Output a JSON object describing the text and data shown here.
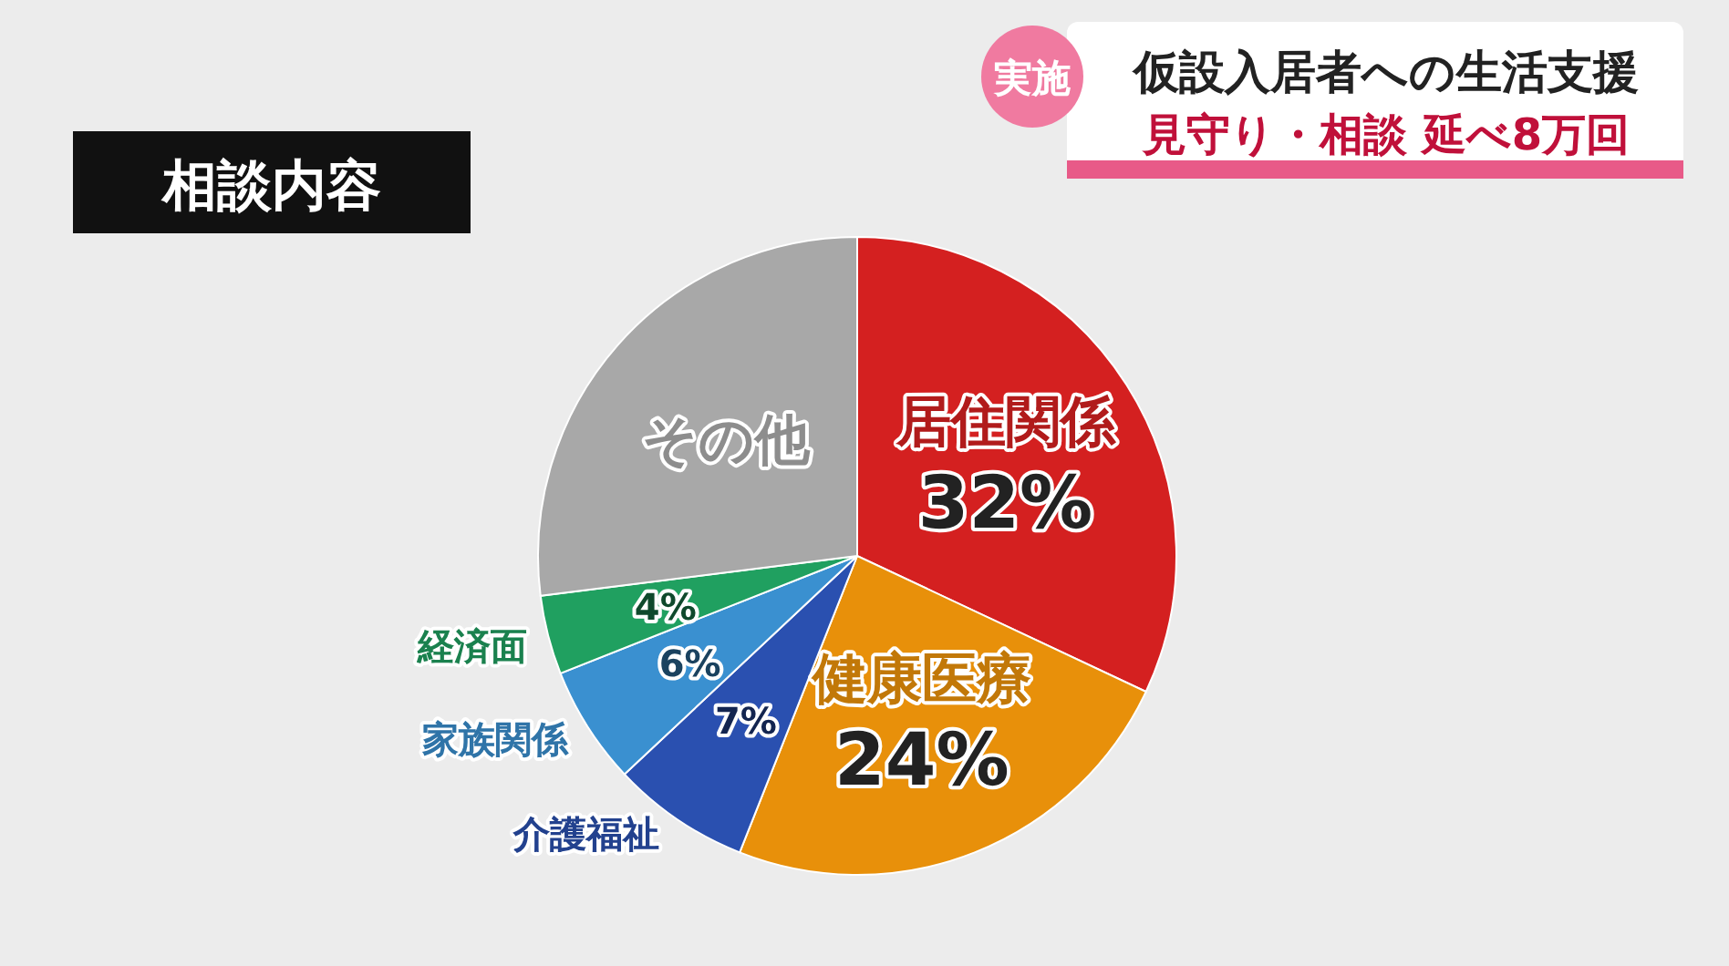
{
  "chart_data": {
    "type": "pie",
    "title": "相談内容",
    "subtitle": "仮設入居者への生活支援",
    "annotations": [
      "実施",
      "見守り・相談 延べ8万回"
    ],
    "categories": [
      "居住関係",
      "健康医療",
      "介護福祉",
      "家族関係",
      "経済面",
      "その他"
    ],
    "values": [
      32,
      24,
      7,
      6,
      4,
      27
    ],
    "value_labels": [
      "32%",
      "24%",
      "7%",
      "6%",
      "4%",
      null
    ],
    "colors": [
      "#d42020",
      "#e8900a",
      "#2a50b0",
      "#3a90d0",
      "#20a060",
      "#a8a8a8"
    ],
    "legend": false
  }
}
